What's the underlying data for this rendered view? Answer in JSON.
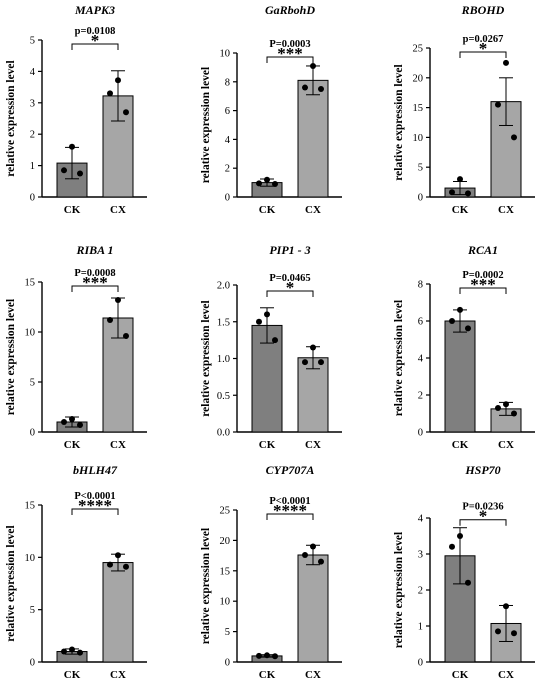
{
  "chart_data": [
    {
      "type": "bar",
      "title": "MAPK3",
      "ylabel": "relative expression level",
      "categories": [
        "CK",
        "CX"
      ],
      "values": [
        1.08,
        3.22
      ],
      "errors": [
        0.5,
        0.8
      ],
      "points": [
        [
          1.6,
          0.85,
          0.75
        ],
        [
          3.72,
          3.3,
          2.7
        ]
      ],
      "ylim": [
        0,
        5
      ],
      "yticks": [
        0,
        1,
        2,
        3,
        4,
        5
      ],
      "p_value": "p=0.0108",
      "significance": "*",
      "colors": [
        "#7f7f7f",
        "#a6a6a6"
      ]
    },
    {
      "type": "bar",
      "title": "GaRbohD",
      "ylabel": "relative expression level",
      "categories": [
        "CK",
        "CX"
      ],
      "values": [
        1.0,
        8.1
      ],
      "errors": [
        0.25,
        1.0
      ],
      "points": [
        [
          1.2,
          0.95,
          0.9
        ],
        [
          9.1,
          7.6,
          7.5
        ]
      ],
      "ylim": [
        0,
        10
      ],
      "yticks": [
        0,
        2,
        4,
        6,
        8,
        10
      ],
      "p_value": "P=0.0003",
      "significance": "***",
      "colors": [
        "#7f7f7f",
        "#a6a6a6"
      ]
    },
    {
      "type": "bar",
      "title": "RBOHD",
      "ylabel": "relative expression level",
      "categories": [
        "CK",
        "CX"
      ],
      "values": [
        1.5,
        16.0
      ],
      "errors": [
        1.1,
        4.0
      ],
      "points": [
        [
          3.0,
          0.8,
          0.6
        ],
        [
          22.5,
          15.5,
          10.0
        ]
      ],
      "ylim": [
        0,
        25
      ],
      "yticks": [
        0,
        5,
        10,
        15,
        20,
        25
      ],
      "p_value": "p=0.0267",
      "significance": "*",
      "colors": [
        "#7f7f7f",
        "#a6a6a6"
      ]
    },
    {
      "type": "bar",
      "title": "RIBA 1",
      "ylabel": "relative expression level",
      "categories": [
        "CK",
        "CX"
      ],
      "values": [
        1.0,
        11.4
      ],
      "errors": [
        0.5,
        2.0
      ],
      "points": [
        [
          1.3,
          1.0,
          0.7
        ],
        [
          13.2,
          11.2,
          9.6
        ]
      ],
      "ylim": [
        0,
        15
      ],
      "yticks": [
        0,
        5,
        10,
        15
      ],
      "p_value": "P=0.0008",
      "significance": "***",
      "colors": [
        "#7f7f7f",
        "#a6a6a6"
      ]
    },
    {
      "type": "bar",
      "title": "PIP1 - 3",
      "ylabel": "relative expression level",
      "categories": [
        "CK",
        "CX"
      ],
      "values": [
        1.45,
        1.01
      ],
      "errors": [
        0.24,
        0.15
      ],
      "points": [
        [
          1.6,
          1.5,
          1.25
        ],
        [
          1.15,
          0.95,
          0.95
        ]
      ],
      "ylim": [
        0,
        2.0
      ],
      "yticks": [
        0.0,
        0.5,
        1.0,
        1.5,
        2.0
      ],
      "p_value": "P=0.0465",
      "significance": "*",
      "colors": [
        "#7f7f7f",
        "#a6a6a6"
      ]
    },
    {
      "type": "bar",
      "title": "RCA1",
      "ylabel": "relative expression level",
      "categories": [
        "CK",
        "CX"
      ],
      "values": [
        6.0,
        1.25
      ],
      "errors": [
        0.6,
        0.35
      ],
      "points": [
        [
          6.6,
          6.0,
          5.6
        ],
        [
          1.5,
          1.3,
          1.0
        ]
      ],
      "ylim": [
        0,
        8
      ],
      "yticks": [
        0,
        2,
        4,
        6,
        8
      ],
      "p_value": "P=0.0002",
      "significance": "***",
      "colors": [
        "#7f7f7f",
        "#a6a6a6"
      ]
    },
    {
      "type": "bar",
      "title": "bHLH47",
      "ylabel": "relative expression level",
      "categories": [
        "CK",
        "CX"
      ],
      "values": [
        1.0,
        9.5
      ],
      "errors": [
        0.25,
        0.8
      ],
      "points": [
        [
          1.2,
          1.0,
          0.9
        ],
        [
          10.2,
          9.3,
          9.1
        ]
      ],
      "ylim": [
        0,
        15
      ],
      "yticks": [
        0,
        5,
        10,
        15
      ],
      "p_value": "P<0.0001",
      "significance": "****",
      "colors": [
        "#7f7f7f",
        "#a6a6a6"
      ]
    },
    {
      "type": "bar",
      "title": "CYP707A",
      "ylabel": "relative expression level",
      "categories": [
        "CK",
        "CX"
      ],
      "values": [
        1.0,
        17.6
      ],
      "errors": [
        0.2,
        1.6
      ],
      "points": [
        [
          1.1,
          1.0,
          0.95
        ],
        [
          19.0,
          17.6,
          16.5
        ]
      ],
      "ylim": [
        0,
        25
      ],
      "yticks": [
        0,
        5,
        10,
        15,
        20,
        25
      ],
      "p_value": "P<0.0001",
      "significance": "****",
      "colors": [
        "#7f7f7f",
        "#a6a6a6"
      ]
    },
    {
      "type": "bar",
      "title": "HSP70",
      "ylabel": "relative expression level",
      "categories": [
        "CK",
        "CX"
      ],
      "values": [
        2.95,
        1.07
      ],
      "errors": [
        0.78,
        0.5
      ],
      "points": [
        [
          3.5,
          3.2,
          2.2
        ],
        [
          1.55,
          0.85,
          0.8
        ]
      ],
      "ylim": [
        0,
        4
      ],
      "yticks": [
        0,
        1,
        2,
        3,
        4
      ],
      "p_value": "P=0.0236",
      "significance": "*",
      "colors": [
        "#7f7f7f",
        "#a6a6a6"
      ]
    }
  ]
}
